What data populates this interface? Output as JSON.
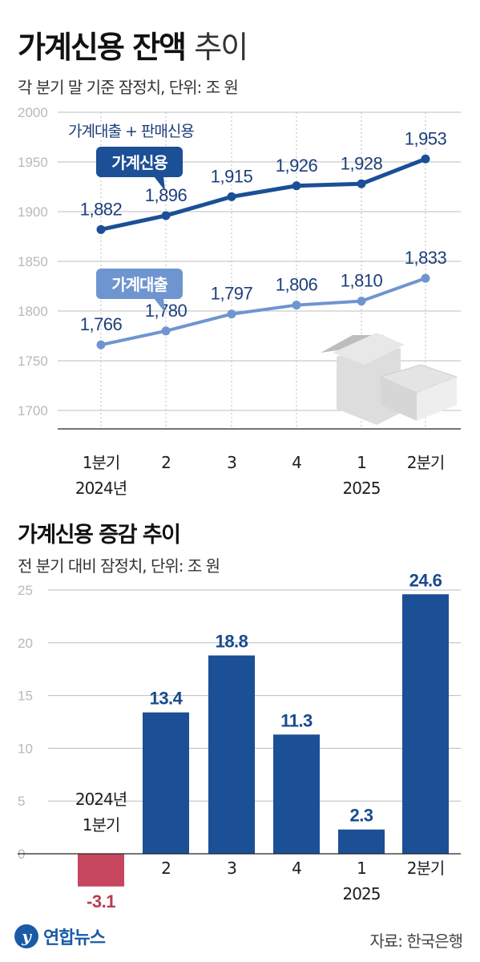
{
  "header": {
    "title_bold": "가계신용 잔액",
    "title_light": "추이",
    "subtitle": "각 분기 말 기준 잠정치, 단위: 조 원"
  },
  "section2": {
    "title": "가계신용 증감 추이",
    "subtitle": "전 분기 대비 잠정치, 단위: 조 원"
  },
  "footer": {
    "logo_text": "연합뉴스",
    "source": "자료: 한국은행"
  },
  "colors": {
    "line_credit": "#1b4f96",
    "line_loan": "#6f95d0",
    "bar_positive": "#1b4f96",
    "bar_negative": "#c6465f",
    "grid": "#bcbcbc"
  },
  "chart_data": [
    {
      "type": "line",
      "categories": [
        [
          "1분기",
          "2024년"
        ],
        [
          "2"
        ],
        [
          "3"
        ],
        [
          "4"
        ],
        [
          "1",
          "2025"
        ],
        [
          "2분기"
        ]
      ],
      "ylim": [
        1700,
        2000
      ],
      "yticks": [
        2000,
        1950,
        1900,
        1850,
        1800,
        1750,
        1700
      ],
      "grid": true,
      "annotation": "가계대출 + 판매신용",
      "series": [
        {
          "name": "가계신용",
          "values": [
            1882,
            1896,
            1915,
            1926,
            1928,
            1953
          ],
          "labels": [
            "1,882",
            "1,896",
            "1,915",
            "1,926",
            "1,928",
            "1,953"
          ]
        },
        {
          "name": "가계대출",
          "values": [
            1766,
            1780,
            1797,
            1806,
            1810,
            1833
          ],
          "labels": [
            "1,766",
            "1,780",
            "1,797",
            "1,806",
            "1,810",
            "1,833"
          ]
        }
      ]
    },
    {
      "type": "bar",
      "categories": [
        [
          "2024년",
          "1분기"
        ],
        [
          "2"
        ],
        [
          "3"
        ],
        [
          "4"
        ],
        [
          "1",
          "2025"
        ],
        [
          "2분기"
        ]
      ],
      "values": [
        -3.1,
        13.4,
        18.8,
        11.3,
        2.3,
        24.6
      ],
      "labels": [
        "-3.1",
        "13.4",
        "18.8",
        "11.3",
        "2.3",
        "24.6"
      ],
      "ylim": [
        -3.1,
        25
      ],
      "yticks": [
        25,
        20,
        15,
        10,
        5,
        0
      ],
      "grid": true
    }
  ]
}
